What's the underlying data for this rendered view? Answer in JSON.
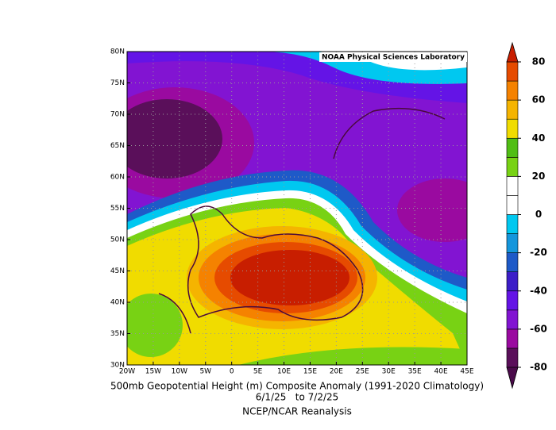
{
  "map": {
    "credit": "NOAA Physical Sciences Laboratory",
    "lon_labels": [
      "20W",
      "15W",
      "10W",
      "5W",
      "0",
      "5E",
      "10E",
      "15E",
      "20E",
      "25E",
      "30E",
      "35E",
      "40E",
      "45E"
    ],
    "lat_labels": [
      "80N",
      "75N",
      "70N",
      "65N",
      "60N",
      "55N",
      "50N",
      "45N",
      "40N",
      "35N",
      "30N"
    ]
  },
  "caption": {
    "title": "500mb Geopotential Height (m) Composite Anomaly (1991-2020 Climatology)",
    "dates": "6/1/25   to 7/2/25",
    "source": "NCEP/NCAR Reanalysis"
  },
  "colorbar": {
    "ticks": [
      80,
      60,
      40,
      20,
      0,
      -20,
      -40,
      -60,
      -80
    ],
    "colors": [
      "#5a0f5a",
      "#9a0aa0",
      "#8214d2",
      "#6414e6",
      "#3c1ec8",
      "#1e5ac8",
      "#1496dc",
      "#00c8f0",
      "#ffffff",
      "#ffffff",
      "#78d214",
      "#50be14",
      "#f0dc00",
      "#f5b400",
      "#f58200",
      "#e64b00"
    ],
    "over_color": "#c81e00",
    "under_color": "#4a0a4a"
  }
}
